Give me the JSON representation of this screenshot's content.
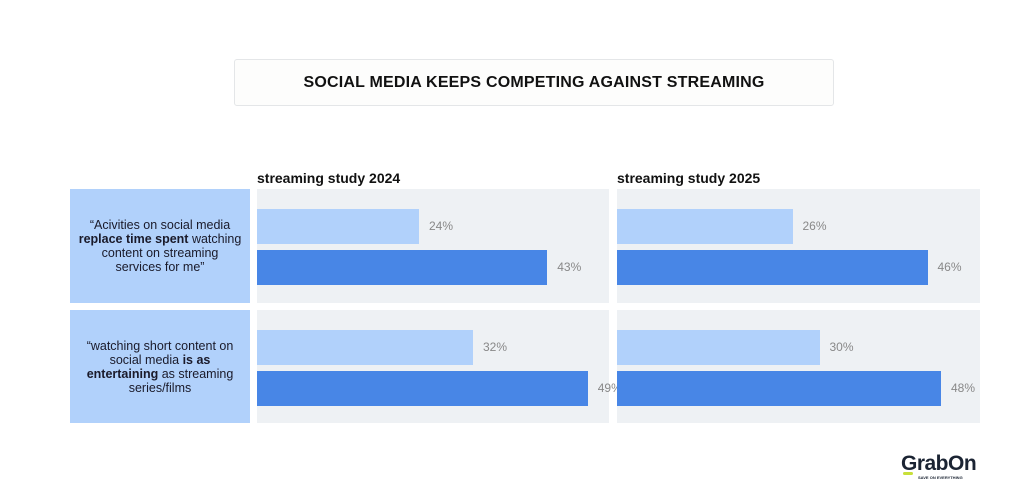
{
  "title": "SOCIAL MEDIA KEEPS COMPETING AGAINST STREAMING",
  "row_labels": [
    {
      "pre": "“Acivities on social media ",
      "bold": "replace time spent",
      "post": " watching content on streaming services for me”"
    },
    {
      "pre": "“watching short content on social media ",
      "bold": "is as entertaining",
      "post": " as streaming series/films"
    }
  ],
  "colors": {
    "series_light": "#b1d1fb",
    "series_dark": "#4886e6",
    "panel_bg": "#eef1f4"
  },
  "chart_data": [
    {
      "type": "bar",
      "orientation": "horizontal",
      "title": "streaming study 2024",
      "categories": [
        "replace time spent",
        "is as entertaining"
      ],
      "series": [
        {
          "values": [
            24,
            32
          ]
        },
        {
          "values": [
            43,
            49
          ]
        }
      ],
      "unit": "%"
    },
    {
      "type": "bar",
      "orientation": "horizontal",
      "title": "streaming study 2025",
      "categories": [
        "replace time spent",
        "is as entertaining"
      ],
      "series": [
        {
          "values": [
            26,
            30
          ]
        },
        {
          "values": [
            46,
            48
          ]
        }
      ],
      "unit": "%"
    }
  ],
  "logo": {
    "name": "GrabOn",
    "tagline": "SAVE ON EVERYTHING"
  }
}
